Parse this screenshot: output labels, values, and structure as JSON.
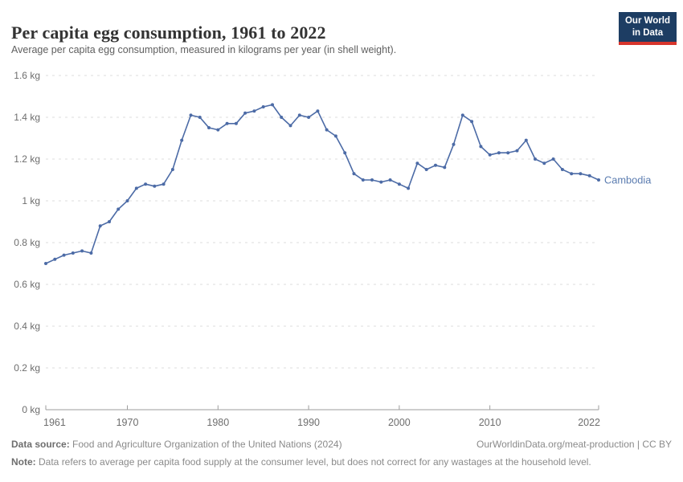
{
  "header": {
    "title": "Per capita egg consumption, 1961 to 2022",
    "subtitle": "Average per capita egg consumption, measured in kilograms per year (in shell weight).",
    "logo": {
      "line1": "Our World",
      "line2": "in Data",
      "bg_color": "#1d3d63",
      "accent_color": "#d7352c"
    }
  },
  "chart_data": {
    "type": "line",
    "title": "Per capita egg consumption, 1961 to 2022",
    "xlabel": "",
    "ylabel": "",
    "unit": "kg",
    "xlim": [
      1961,
      2022
    ],
    "ylim": [
      0,
      1.6
    ],
    "grid": "horizontal-dashed",
    "legend_position": "end-of-line-label",
    "x": [
      1961,
      1962,
      1963,
      1964,
      1965,
      1966,
      1967,
      1968,
      1969,
      1970,
      1971,
      1972,
      1973,
      1974,
      1975,
      1976,
      1977,
      1978,
      1979,
      1980,
      1981,
      1982,
      1983,
      1984,
      1985,
      1986,
      1987,
      1988,
      1989,
      1990,
      1991,
      1992,
      1993,
      1994,
      1995,
      1996,
      1997,
      1998,
      1999,
      2000,
      2001,
      2002,
      2003,
      2004,
      2005,
      2006,
      2007,
      2008,
      2009,
      2010,
      2011,
      2012,
      2013,
      2014,
      2015,
      2016,
      2017,
      2018,
      2019,
      2020,
      2021,
      2022
    ],
    "series": [
      {
        "name": "Cambodia",
        "color": "#4c6ba6",
        "label_color": "#5b7cb0",
        "values": [
          0.7,
          0.72,
          0.74,
          0.75,
          0.76,
          0.75,
          0.88,
          0.9,
          0.96,
          1.0,
          1.06,
          1.08,
          1.07,
          1.08,
          1.15,
          1.29,
          1.41,
          1.4,
          1.35,
          1.34,
          1.37,
          1.37,
          1.42,
          1.43,
          1.45,
          1.46,
          1.4,
          1.36,
          1.41,
          1.4,
          1.43,
          1.34,
          1.31,
          1.23,
          1.13,
          1.1,
          1.1,
          1.09,
          1.1,
          1.08,
          1.06,
          1.18,
          1.15,
          1.17,
          1.16,
          1.27,
          1.41,
          1.38,
          1.26,
          1.22,
          1.23,
          1.23,
          1.24,
          1.29,
          1.2,
          1.18,
          1.2,
          1.15,
          1.13,
          1.13,
          1.12,
          1.1
        ]
      }
    ],
    "xticks": [
      {
        "x": 1961,
        "label": "1961"
      },
      {
        "x": 1970,
        "label": "1970"
      },
      {
        "x": 1980,
        "label": "1980"
      },
      {
        "x": 1990,
        "label": "1990"
      },
      {
        "x": 2000,
        "label": "2000"
      },
      {
        "x": 2010,
        "label": "2010"
      },
      {
        "x": 2022,
        "label": "2022"
      }
    ],
    "yticks": [
      {
        "v": 0,
        "label": "0 kg"
      },
      {
        "v": 0.2,
        "label": "0.2 kg"
      },
      {
        "v": 0.4,
        "label": "0.4 kg"
      },
      {
        "v": 0.6,
        "label": "0.6 kg"
      },
      {
        "v": 0.8,
        "label": "0.8 kg"
      },
      {
        "v": 1,
        "label": "1 kg"
      },
      {
        "v": 1.2,
        "label": "1.2 kg"
      },
      {
        "v": 1.4,
        "label": "1.4 kg"
      },
      {
        "v": 1.6,
        "label": "1.6 kg"
      }
    ],
    "axis_color": "#9e9e9e",
    "gridline_color": "#dcdcdc",
    "tick_label_color": "#6e6e6e"
  },
  "footer": {
    "source_label": "Data source:",
    "source_text": " Food and Agriculture Organization of the United Nations (2024)",
    "url_text": "OurWorldinData.org/meat-production | CC BY",
    "note_label": "Note:",
    "note_text": " Data refers to average per capita food supply at the consumer level, but does not correct for any wastages at the household level."
  }
}
